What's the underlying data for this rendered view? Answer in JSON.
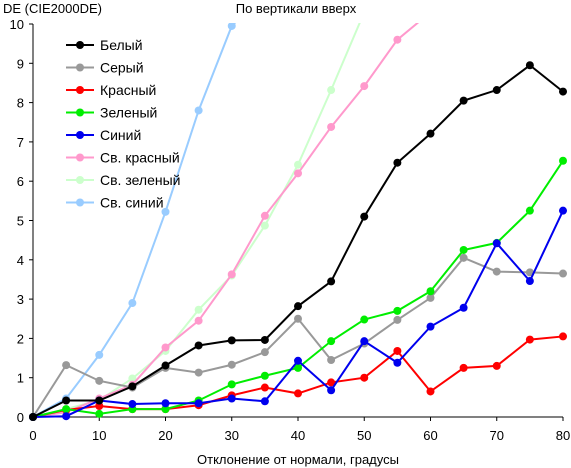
{
  "chart_data": {
    "type": "line",
    "title": "По вертикали вверх",
    "ylabel": "DE (CIE2000DE)",
    "xlabel": "Отклонение от нормали, градусы",
    "xlim": [
      0,
      80
    ],
    "ylim": [
      0,
      10
    ],
    "x_ticks": [
      0,
      10,
      20,
      30,
      40,
      50,
      60,
      70,
      80
    ],
    "y_ticks": [
      0,
      1,
      2,
      3,
      4,
      5,
      6,
      7,
      8,
      9,
      10
    ],
    "grid": false,
    "legend_position": "top-left",
    "x": [
      0,
      5,
      10,
      15,
      20,
      25,
      30,
      35,
      40,
      45,
      50,
      55,
      60,
      65,
      70,
      75,
      80
    ],
    "series": [
      {
        "name": "Белый",
        "color": "#000000",
        "values": [
          0,
          0.42,
          0.42,
          0.78,
          1.31,
          1.82,
          1.95,
          1.96,
          2.82,
          3.45,
          5.1,
          6.47,
          7.21,
          8.05,
          8.32,
          8.95,
          8.28
        ]
      },
      {
        "name": "Серый",
        "color": "#999999",
        "values": [
          0,
          1.32,
          0.92,
          0.75,
          1.25,
          1.13,
          1.33,
          1.65,
          2.5,
          1.45,
          1.87,
          2.47,
          3.03,
          4.05,
          3.7,
          3.68,
          3.65
        ]
      },
      {
        "name": "Красный",
        "color": "#ff0000",
        "values": [
          0,
          0.18,
          0.28,
          0.2,
          0.2,
          0.3,
          0.55,
          0.75,
          0.6,
          0.88,
          1.0,
          1.68,
          0.65,
          1.25,
          1.3,
          1.97,
          2.05
        ]
      },
      {
        "name": "Зеленый",
        "color": "#00ee00",
        "values": [
          0,
          0.2,
          0.08,
          0.2,
          0.2,
          0.42,
          0.83,
          1.05,
          1.25,
          1.93,
          2.48,
          2.7,
          3.2,
          4.25,
          4.43,
          5.25,
          6.52
        ]
      },
      {
        "name": "Синий",
        "color": "#0000ee",
        "values": [
          0,
          0.02,
          0.42,
          0.33,
          0.35,
          0.35,
          0.47,
          0.4,
          1.43,
          0.68,
          1.93,
          1.38,
          2.3,
          2.78,
          4.42,
          3.46,
          5.25
        ]
      },
      {
        "name": "Св. красный",
        "color": "#ff99cc",
        "values": [
          0,
          0.12,
          0.47,
          0.82,
          1.77,
          2.45,
          3.63,
          5.12,
          6.2,
          7.38,
          8.42,
          9.6,
          10.3,
          null,
          null,
          null,
          null
        ]
      },
      {
        "name": "Св. зеленый",
        "color": "#ccffcc",
        "values": [
          0,
          0.2,
          0.43,
          0.98,
          1.68,
          2.73,
          3.6,
          4.87,
          6.42,
          8.32,
          10.3,
          null,
          null,
          null,
          null,
          null,
          null
        ]
      },
      {
        "name": "Св. синий",
        "color": "#99ccff",
        "values": [
          0,
          0.47,
          1.58,
          2.9,
          5.22,
          7.8,
          9.95,
          10.8,
          null,
          null,
          null,
          null,
          null,
          null,
          null,
          null,
          null
        ]
      }
    ]
  }
}
